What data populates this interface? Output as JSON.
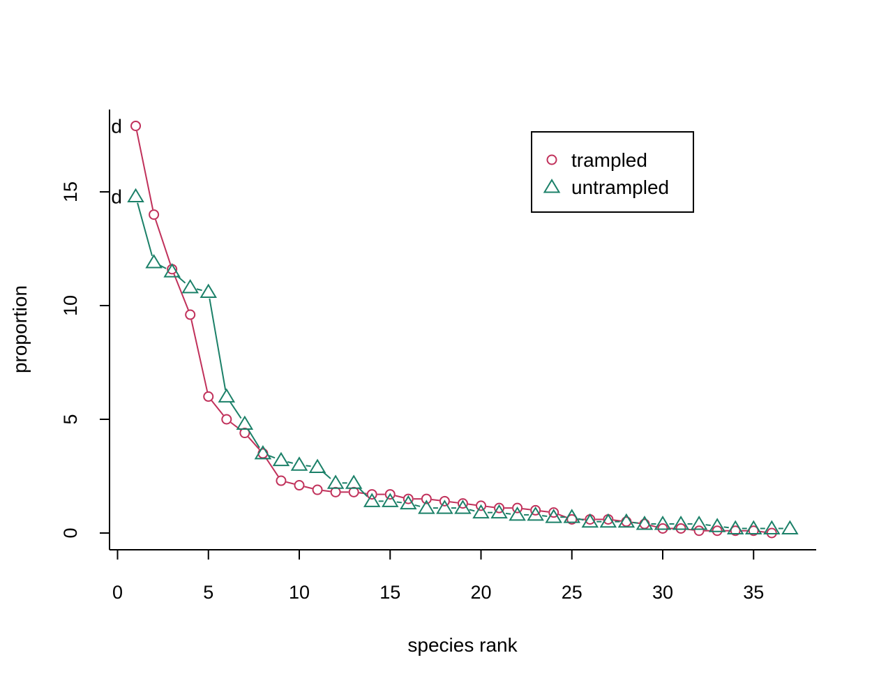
{
  "chart_data": {
    "type": "line",
    "xlabel": "species rank",
    "ylabel": "proportion",
    "xlim": [
      0,
      37
    ],
    "ylim": [
      0,
      18
    ],
    "x_ticks": [
      "0",
      "5",
      "10",
      "15",
      "20",
      "25",
      "30",
      "35"
    ],
    "y_ticks": [
      "0",
      "5",
      "10",
      "15"
    ],
    "legend_position": "top-right",
    "point_annotations": [
      {
        "series": 0,
        "index": 0,
        "text": "d"
      },
      {
        "series": 1,
        "index": 0,
        "text": "d"
      }
    ],
    "series": [
      {
        "name": "trampled",
        "color": "#C0305A",
        "marker": "circle",
        "x": [
          1,
          2,
          3,
          4,
          5,
          6,
          7,
          8,
          9,
          10,
          11,
          12,
          13,
          14,
          15,
          16,
          17,
          18,
          19,
          20,
          21,
          22,
          23,
          24,
          25,
          26,
          27,
          28,
          29,
          30,
          31,
          32,
          33,
          34,
          35,
          36
        ],
        "values": [
          17.9,
          14.0,
          11.6,
          9.6,
          6.0,
          5.0,
          4.4,
          3.5,
          2.3,
          2.1,
          1.9,
          1.8,
          1.8,
          1.7,
          1.7,
          1.5,
          1.5,
          1.4,
          1.3,
          1.2,
          1.1,
          1.1,
          1.0,
          0.9,
          0.6,
          0.6,
          0.6,
          0.5,
          0.4,
          0.2,
          0.2,
          0.1,
          0.1,
          0.1,
          0.1,
          0.0
        ]
      },
      {
        "name": "untrampled",
        "color": "#1B8068",
        "marker": "triangle",
        "x": [
          1,
          2,
          3,
          4,
          5,
          6,
          7,
          8,
          9,
          10,
          11,
          12,
          13,
          14,
          15,
          16,
          17,
          18,
          19,
          20,
          21,
          22,
          23,
          24,
          25,
          26,
          27,
          28,
          29,
          30,
          31,
          32,
          33,
          34,
          35,
          36,
          37
        ],
        "values": [
          14.8,
          11.9,
          11.5,
          10.8,
          10.6,
          6.0,
          4.8,
          3.5,
          3.2,
          3.0,
          2.9,
          2.2,
          2.2,
          1.4,
          1.4,
          1.3,
          1.1,
          1.1,
          1.1,
          0.9,
          0.9,
          0.8,
          0.8,
          0.7,
          0.7,
          0.5,
          0.5,
          0.5,
          0.4,
          0.4,
          0.4,
          0.4,
          0.3,
          0.2,
          0.2,
          0.2,
          0.2
        ]
      }
    ]
  }
}
